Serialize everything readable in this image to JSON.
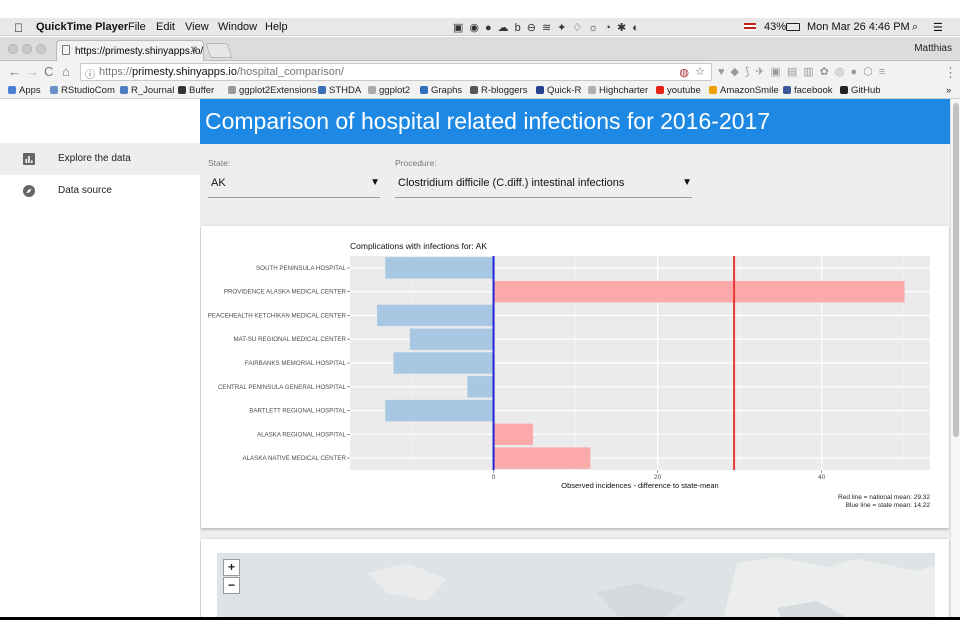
{
  "menubar": {
    "app": "QuickTime Player",
    "items": [
      "File",
      "Edit",
      "View",
      "Window",
      "Help"
    ],
    "battery": "43%",
    "datetime": "Mon Mar 26  4:46 PM"
  },
  "browser": {
    "tab_title": "https://primesty.shinyapps.io/",
    "profile": "Matthias",
    "url_scheme": "https://",
    "url_host": "primesty.shinyapps.io",
    "url_path": "/hospital_comparison/",
    "bookmarks": [
      {
        "label": "Apps",
        "color": "#4a7fd6"
      },
      {
        "label": "RStudioCom",
        "color": "#6b8fc9"
      },
      {
        "label": "R_Journal",
        "color": "#4f7dc2"
      },
      {
        "label": "Buffer",
        "color": "#333333"
      },
      {
        "label": "ggplot2Extensions",
        "color": "#9a9a9a"
      },
      {
        "label": "STHDA",
        "color": "#3a6db5"
      },
      {
        "label": "ggplot2",
        "color": "#aaaaaa"
      },
      {
        "label": "Graphs",
        "color": "#2f6fc0"
      },
      {
        "label": "R-bloggers",
        "color": "#555555"
      },
      {
        "label": "Quick-R",
        "color": "#25408f"
      },
      {
        "label": "Highcharter",
        "color": "#b0b0b0"
      },
      {
        "label": "youtube",
        "color": "#e62117"
      },
      {
        "label": "AmazonSmile",
        "color": "#f0a000"
      },
      {
        "label": "facebook",
        "color": "#3b5998"
      },
      {
        "label": "GitHub",
        "color": "#222222"
      }
    ]
  },
  "app": {
    "title": "Comparison of hospital related infections for 2016-2017",
    "sidebar": [
      {
        "label": "Explore the data",
        "icon": "bar-chart-icon",
        "active": true
      },
      {
        "label": "Data source",
        "icon": "compass-icon",
        "active": false
      }
    ],
    "state_label": "State:",
    "state_value": "AK",
    "procedure_label": "Procedure:",
    "procedure_value": "Clostridium difficile (C.diff.) intestinal infections",
    "map_zoom_in": "+",
    "map_zoom_out": "−"
  },
  "chart_data": {
    "type": "bar",
    "orientation": "horizontal",
    "title": "Complications with infections for: AK",
    "xlabel": "Observed incidences - difference to state-mean",
    "ylabel": "",
    "categories": [
      "SOUTH PENINSULA HOSPITAL",
      "PROVIDENCE ALASKA MEDICAL CENTER",
      "PEACEHEALTH KETCHIKAN MEDICAL CENTER",
      "MAT-SU REGIONAL MEDICAL CENTER",
      "FAIRBANKS MEMORIAL HOSPITAL",
      "CENTRAL PENINSULA GENERAL HOSPITAL",
      "BARTLETT REGIONAL HOSPITAL",
      "ALASKA REGIONAL HOSPITAL",
      "ALASKA NATIVE MEDICAL CENTER"
    ],
    "values": [
      -13.2,
      50.1,
      -14.2,
      -10.2,
      -12.2,
      -3.2,
      -13.2,
      4.8,
      11.8
    ],
    "xlim": [
      -17.5,
      53.2
    ],
    "xticks": [
      0,
      20,
      40
    ],
    "positive_color": "#fba9a9",
    "negative_color": "#a7c7e2",
    "grid": true,
    "legend": "none",
    "reference_lines": [
      {
        "name": "Red line = national mean: 29.32",
        "x_value": 29.32,
        "color": "#e53935"
      },
      {
        "name": "Blue line = state mean: 14.22",
        "x_value": 0,
        "color": "#2424d6"
      }
    ],
    "caption_lines": [
      "Red line = national mean: 29.32",
      "Blue line = state mean: 14.22"
    ]
  }
}
